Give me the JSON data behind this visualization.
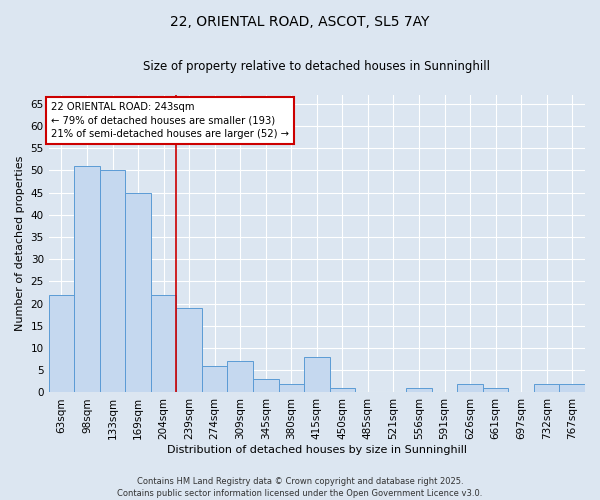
{
  "title_line1": "22, ORIENTAL ROAD, ASCOT, SL5 7AY",
  "title_line2": "Size of property relative to detached houses in Sunninghill",
  "xlabel": "Distribution of detached houses by size in Sunninghill",
  "ylabel": "Number of detached properties",
  "bin_labels": [
    "63sqm",
    "98sqm",
    "133sqm",
    "169sqm",
    "204sqm",
    "239sqm",
    "274sqm",
    "309sqm",
    "345sqm",
    "380sqm",
    "415sqm",
    "450sqm",
    "485sqm",
    "521sqm",
    "556sqm",
    "591sqm",
    "626sqm",
    "661sqm",
    "697sqm",
    "732sqm",
    "767sqm"
  ],
  "bar_heights": [
    22,
    51,
    50,
    45,
    22,
    19,
    6,
    7,
    3,
    2,
    8,
    1,
    0,
    0,
    1,
    0,
    2,
    1,
    0,
    2,
    2
  ],
  "bar_color": "#c5d8ef",
  "bar_edge_color": "#5b9bd5",
  "vline_x": 4.5,
  "annotation_line1": "22 ORIENTAL ROAD: 243sqm",
  "annotation_line2": "← 79% of detached houses are smaller (193)",
  "annotation_line3": "21% of semi-detached houses are larger (52) →",
  "annotation_box_color": "#ffffff",
  "annotation_box_edge": "#cc0000",
  "vline_color": "#cc0000",
  "ylim": [
    0,
    67
  ],
  "yticks": [
    0,
    5,
    10,
    15,
    20,
    25,
    30,
    35,
    40,
    45,
    50,
    55,
    60,
    65
  ],
  "footer_line1": "Contains HM Land Registry data © Crown copyright and database right 2025.",
  "footer_line2": "Contains public sector information licensed under the Open Government Licence v3.0.",
  "background_color": "#dce6f1",
  "plot_bg_color": "#dce6f1",
  "grid_color": "#ffffff",
  "title_fontsize": 10,
  "subtitle_fontsize": 8.5,
  "xlabel_fontsize": 8,
  "ylabel_fontsize": 8,
  "tick_fontsize": 7.5,
  "footer_fontsize": 6
}
